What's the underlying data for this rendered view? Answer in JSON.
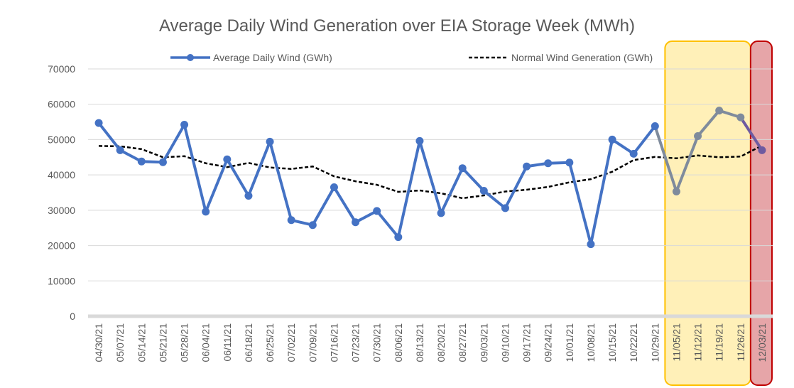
{
  "chart_data": {
    "type": "line",
    "title": "Average Daily Wind Generation over EIA Storage Week (MWh)",
    "xlabel": "",
    "ylabel": "",
    "ylim": [
      0,
      70000
    ],
    "yticks": [
      0,
      10000,
      20000,
      30000,
      40000,
      50000,
      60000,
      70000
    ],
    "grid": true,
    "legend_position": "top",
    "categories": [
      "04/30/21",
      "05/07/21",
      "05/14/21",
      "05/21/21",
      "05/28/21",
      "06/04/21",
      "06/11/21",
      "06/18/21",
      "06/25/21",
      "07/02/21",
      "07/09/21",
      "07/16/21",
      "07/23/21",
      "07/30/21",
      "08/06/21",
      "08/13/21",
      "08/20/21",
      "08/27/21",
      "09/03/21",
      "09/10/21",
      "09/17/21",
      "09/24/21",
      "10/01/21",
      "10/08/21",
      "10/15/21",
      "10/22/21",
      "10/29/21",
      "11/05/21",
      "11/12/21",
      "11/19/21",
      "11/26/21",
      "12/03/21"
    ],
    "series": [
      {
        "name": "Average Daily Wind (GWh)",
        "style": "solid-with-markers",
        "color": "#4472C4",
        "values": [
          54700,
          47000,
          43800,
          43600,
          54200,
          29600,
          44400,
          34100,
          49400,
          27200,
          25800,
          36500,
          26600,
          29800,
          22400,
          49600,
          29200,
          41900,
          35500,
          30600,
          42400,
          43300,
          43500,
          20400,
          50000,
          46000,
          53800,
          35300,
          51000,
          58200,
          56300,
          47000
        ]
      },
      {
        "name": "Normal Wind Generation (GWh)",
        "style": "dashed",
        "color": "#000000",
        "values": [
          48200,
          48100,
          47300,
          45000,
          45300,
          43300,
          42200,
          43400,
          42100,
          41700,
          42400,
          39600,
          38200,
          37200,
          35200,
          35600,
          34800,
          33400,
          34200,
          35300,
          35800,
          36600,
          37900,
          38800,
          40900,
          44200,
          45100,
          44700,
          45500,
          45000,
          45200,
          48300
        ]
      }
    ],
    "highlights": [
      {
        "from": "11/05/21",
        "to": "11/26/21",
        "fill": "#FFF0B8",
        "stroke": "#FFC000",
        "muted_line_color": "#7F8B9C"
      },
      {
        "from": "12/03/21",
        "to": "12/03/21",
        "fill": "#E6A5A8",
        "stroke": "#C00000",
        "muted_line_color": "#6E5AA0"
      }
    ]
  }
}
